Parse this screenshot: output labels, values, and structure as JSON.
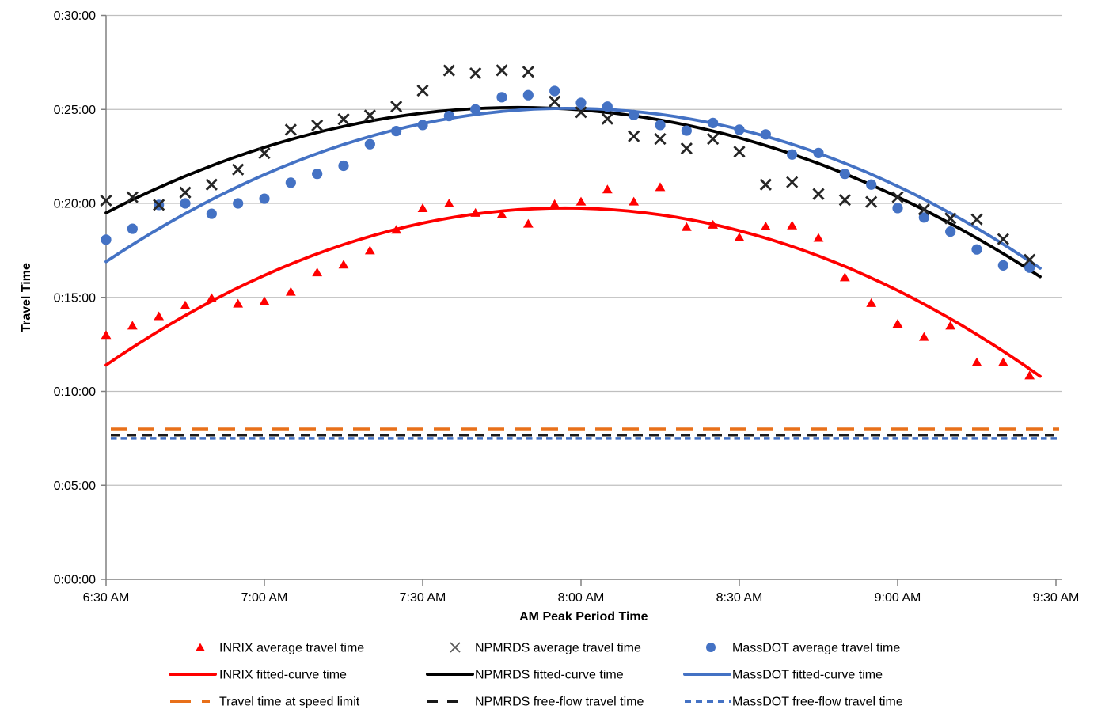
{
  "chart_data": {
    "type": "scatter",
    "title": "",
    "xlabel": "AM Peak Period Time",
    "ylabel": "Travel Time",
    "x_tick_labels": [
      "6:30 AM",
      "7:00 AM",
      "7:30 AM",
      "8:00 AM",
      "8:30 AM",
      "9:00 AM",
      "9:30 AM"
    ],
    "x_tick_minutes": [
      0,
      30,
      60,
      90,
      120,
      150,
      180
    ],
    "y_tick_labels": [
      "0:00:00",
      "0:05:00",
      "0:10:00",
      "0:15:00",
      "0:20:00",
      "0:25:00",
      "0:30:00"
    ],
    "y_tick_minutes": [
      0,
      5,
      10,
      15,
      20,
      25,
      30
    ],
    "xlim_minutes": [
      0,
      181
    ],
    "ylim_minutes": [
      0,
      30
    ],
    "grid": true,
    "legend_position": "bottom",
    "times": [
      "6:30 AM",
      "6:35 AM",
      "6:40 AM",
      "6:45 AM",
      "6:50 AM",
      "6:55 AM",
      "7:00 AM",
      "7:05 AM",
      "7:10 AM",
      "7:15 AM",
      "7:20 AM",
      "7:25 AM",
      "7:30 AM",
      "7:35 AM",
      "7:40 AM",
      "7:45 AM",
      "7:50 AM",
      "7:55 AM",
      "8:00 AM",
      "8:05 AM",
      "8:10 AM",
      "8:15 AM",
      "8:20 AM",
      "8:25 AM",
      "8:30 AM",
      "8:35 AM",
      "8:40 AM",
      "8:45 AM",
      "8:50 AM",
      "8:55 AM",
      "9:00 AM",
      "9:05 AM",
      "9:10 AM",
      "9:15 AM",
      "9:20 AM",
      "9:25 AM"
    ],
    "scatter_series": [
      {
        "name": "INRIX average travel time",
        "marker": "triangle",
        "color": "#FF0000",
        "values_minutes": [
          13.0,
          13.5,
          14.0,
          14.58,
          14.97,
          14.67,
          14.8,
          15.3,
          16.33,
          16.75,
          17.5,
          18.6,
          19.75,
          20.0,
          19.5,
          19.42,
          18.92,
          19.97,
          20.1,
          20.75,
          20.1,
          20.87,
          18.75,
          18.87,
          18.2,
          18.78,
          18.83,
          18.17,
          16.07,
          14.7,
          13.6,
          12.9,
          13.5,
          11.55,
          11.55,
          10.85
        ]
      },
      {
        "name": "NPMRDS average travel time",
        "marker": "x",
        "color": "#262626",
        "values_minutes": [
          20.15,
          20.33,
          19.92,
          20.58,
          21.0,
          21.8,
          22.67,
          23.92,
          24.15,
          24.48,
          24.68,
          25.15,
          26.0,
          27.07,
          26.92,
          27.08,
          27.0,
          25.42,
          24.85,
          24.5,
          23.57,
          23.43,
          22.92,
          23.43,
          22.75,
          21.0,
          21.13,
          20.5,
          20.18,
          20.08,
          20.33,
          19.68,
          19.2,
          19.15,
          18.1,
          17.0
        ]
      },
      {
        "name": "MassDOT average travel time",
        "marker": "circle",
        "color": "#4472C4",
        "values_minutes": [
          18.07,
          18.65,
          19.92,
          20.0,
          19.45,
          20.0,
          20.25,
          21.1,
          21.57,
          22.0,
          23.15,
          23.85,
          24.17,
          24.65,
          25.0,
          25.65,
          25.76,
          25.98,
          25.35,
          25.15,
          24.7,
          24.17,
          23.87,
          24.28,
          23.92,
          23.67,
          22.6,
          22.68,
          21.57,
          21.0,
          19.75,
          19.25,
          18.5,
          17.55,
          16.7,
          16.58
        ]
      }
    ],
    "fitted_series": [
      {
        "name": "INRIX fitted-curve time",
        "color": "#FF0000",
        "anchor_points_min": [
          [
            0,
            11.4
          ],
          [
            85,
            19.75
          ],
          [
            177,
            10.8
          ]
        ]
      },
      {
        "name": "NPMRDS fitted-curve time",
        "color": "#000000",
        "anchor_points_min": [
          [
            0,
            19.5
          ],
          [
            80,
            25.1
          ],
          [
            177,
            16.1
          ]
        ]
      },
      {
        "name": "MassDOT fitted-curve time",
        "color": "#4472C4",
        "anchor_points_min": [
          [
            0,
            16.9
          ],
          [
            95,
            25.0
          ],
          [
            177,
            16.55
          ]
        ]
      }
    ],
    "reference_lines": [
      {
        "name": "Travel time at speed limit",
        "color": "#E8701A",
        "dash": [
          21,
          13
        ],
        "value_minutes": 8.0
      },
      {
        "name": "NPMRDS free-flow travel time",
        "color": "#1A1A1A",
        "dash": [
          12,
          8
        ],
        "value_minutes": 7.67
      },
      {
        "name": "MassDOT free-flow travel time",
        "color": "#4472C4",
        "dash": [
          7.5,
          5
        ],
        "value_minutes": 7.5
      }
    ],
    "legend": {
      "columns": [
        {
          "items": [
            {
              "label": "INRIX average travel time",
              "swatch": "triangle",
              "color": "#FF0000"
            },
            {
              "label": "INRIX fitted-curve time",
              "swatch": "line",
              "color": "#FF0000"
            },
            {
              "label": "Travel time at speed limit",
              "swatch": "dash-long",
              "color": "#E8701A"
            }
          ]
        },
        {
          "items": [
            {
              "label": "NPMRDS average travel time",
              "swatch": "x",
              "color": "#595959"
            },
            {
              "label": "NPMRDS fitted-curve time",
              "swatch": "line",
              "color": "#000000"
            },
            {
              "label": "NPMRDS free-flow travel time",
              "swatch": "dash-medium",
              "color": "#1A1A1A"
            }
          ]
        },
        {
          "items": [
            {
              "label": "MassDOT average travel time",
              "swatch": "circle",
              "color": "#4472C4"
            },
            {
              "label": "MassDOT fitted-curve time",
              "swatch": "line",
              "color": "#4472C4"
            },
            {
              "label": "MassDOT free-flow travel time",
              "swatch": "dash-short",
              "color": "#4472C4"
            }
          ]
        }
      ]
    },
    "colors": {
      "grid": "#BFBFBF",
      "axis": "#808080",
      "text": "#000000",
      "inrix_red": "#FF0000",
      "npmrds_black": "#000000",
      "massdot_blue": "#4472C4",
      "speed_limit_orange": "#E8701A"
    }
  }
}
